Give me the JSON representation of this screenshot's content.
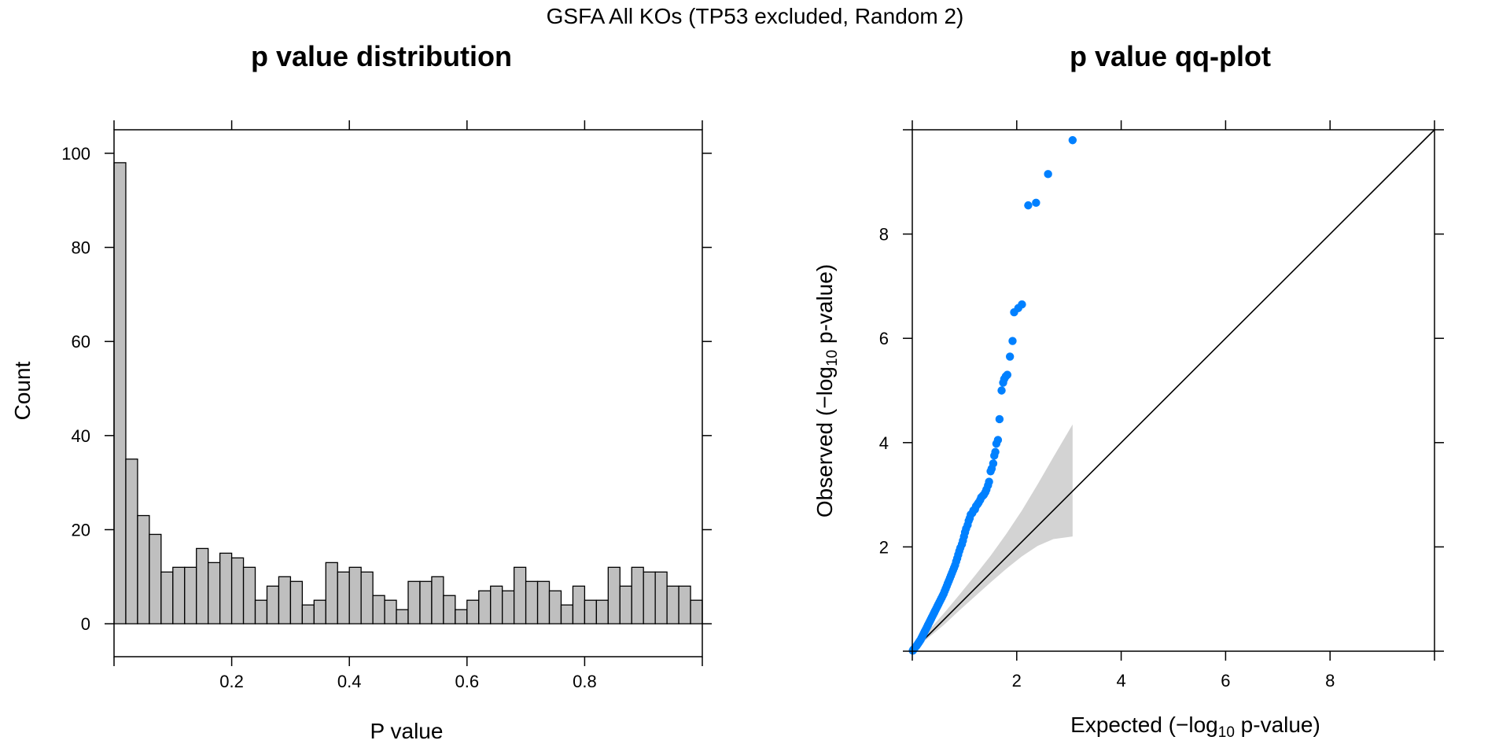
{
  "figure": {
    "suptitle": "GSFA All KOs (TP53 excluded, Random 2)"
  },
  "colors": {
    "bar_fill": "#bfbfbf",
    "bar_stroke": "#000000",
    "point": "#0080ff",
    "band": "#d3d3d3",
    "line": "#000000"
  },
  "chart_data": [
    {
      "type": "bar",
      "title": "p value distribution",
      "xlabel": "P value",
      "ylabel": "Count",
      "xlim": [
        0,
        1
      ],
      "ylim": [
        -7,
        105
      ],
      "bin_width": 0.02,
      "x_ticks": [
        0.2,
        0.4,
        0.6,
        0.8
      ],
      "x_tick_labels": [
        "0.2",
        "0.4",
        "0.6",
        "0.8"
      ],
      "y_ticks": [
        0,
        20,
        40,
        60,
        80,
        100
      ],
      "y_tick_labels": [
        "0",
        "20",
        "40",
        "60",
        "80",
        "100"
      ],
      "categories": [
        "0.00-0.02",
        "0.02-0.04",
        "0.04-0.06",
        "0.06-0.08",
        "0.08-0.10",
        "0.10-0.12",
        "0.12-0.14",
        "0.14-0.16",
        "0.16-0.18",
        "0.18-0.20",
        "0.20-0.22",
        "0.22-0.24",
        "0.24-0.26",
        "0.26-0.28",
        "0.28-0.30",
        "0.30-0.32",
        "0.32-0.34",
        "0.34-0.36",
        "0.36-0.38",
        "0.38-0.40",
        "0.40-0.42",
        "0.42-0.44",
        "0.44-0.46",
        "0.46-0.48",
        "0.48-0.50",
        "0.50-0.52",
        "0.52-0.54",
        "0.54-0.56",
        "0.56-0.58",
        "0.58-0.60",
        "0.60-0.62",
        "0.62-0.64",
        "0.64-0.66",
        "0.66-0.68",
        "0.68-0.70",
        "0.70-0.72",
        "0.72-0.74",
        "0.74-0.76",
        "0.76-0.78",
        "0.78-0.80",
        "0.80-0.82",
        "0.82-0.84",
        "0.84-0.86",
        "0.86-0.88",
        "0.88-0.90",
        "0.90-0.92",
        "0.92-0.94",
        "0.94-0.96",
        "0.96-0.98",
        "0.98-1.00"
      ],
      "values": [
        98,
        35,
        23,
        19,
        11,
        12,
        12,
        16,
        13,
        15,
        14,
        12,
        5,
        8,
        10,
        9,
        4,
        5,
        13,
        11,
        12,
        11,
        6,
        5,
        3,
        9,
        9,
        10,
        6,
        3,
        5,
        7,
        8,
        7,
        12,
        9,
        9,
        7,
        4,
        8,
        5,
        5,
        12,
        8,
        12,
        11,
        11,
        8,
        8,
        5
      ]
    },
    {
      "type": "scatter",
      "title": "p value qq-plot",
      "xlabel": "Expected (−log10 p-value)",
      "ylabel": "Observed (−log10 p-value)",
      "xlabel_parts": [
        "Expected (",
        "−",
        "log",
        "10",
        " p-value)"
      ],
      "ylabel_parts": [
        "Observed (",
        "−",
        "log",
        "10",
        " p-value)"
      ],
      "xlim": [
        0,
        10
      ],
      "ylim": [
        0,
        10
      ],
      "x_ticks": [
        2,
        4,
        6,
        8
      ],
      "x_tick_labels": [
        "2",
        "4",
        "6",
        "8"
      ],
      "y_ticks": [
        2,
        4,
        6,
        8
      ],
      "y_tick_labels": [
        "2",
        "4",
        "6",
        "8"
      ],
      "reference_line": {
        "from": [
          0,
          0
        ],
        "to": [
          10,
          10
        ]
      },
      "confidence_band": {
        "x": [
          0.0,
          0.3,
          0.6,
          0.9,
          1.2,
          1.5,
          1.8,
          2.1,
          2.4,
          2.7,
          3.07
        ],
        "lower": [
          0.0,
          0.25,
          0.5,
          0.78,
          1.05,
          1.32,
          1.58,
          1.82,
          2.02,
          2.15,
          2.2
        ],
        "upper": [
          0.0,
          0.38,
          0.72,
          1.08,
          1.45,
          1.83,
          2.25,
          2.7,
          3.2,
          3.72,
          4.35
        ]
      },
      "points": [
        [
          3.07,
          9.8
        ],
        [
          2.6,
          9.15
        ],
        [
          2.37,
          8.6
        ],
        [
          2.22,
          8.55
        ],
        [
          2.1,
          6.65
        ],
        [
          2.03,
          6.58
        ],
        [
          1.95,
          6.5
        ],
        [
          1.92,
          5.95
        ],
        [
          1.87,
          5.65
        ],
        [
          1.82,
          5.3
        ],
        [
          1.79,
          5.27
        ],
        [
          1.76,
          5.22
        ],
        [
          1.74,
          5.15
        ],
        [
          1.71,
          5.0
        ],
        [
          1.67,
          4.45
        ],
        [
          1.64,
          4.05
        ],
        [
          1.61,
          3.98
        ],
        [
          1.59,
          3.82
        ],
        [
          1.57,
          3.75
        ],
        [
          1.55,
          3.6
        ],
        [
          1.52,
          3.5
        ],
        [
          1.5,
          3.45
        ],
        [
          1.47,
          3.25
        ],
        [
          1.45,
          3.18
        ],
        [
          1.42,
          3.1
        ],
        [
          1.4,
          3.05
        ],
        [
          1.37,
          3.0
        ],
        [
          1.35,
          2.98
        ],
        [
          1.32,
          2.95
        ],
        [
          1.3,
          2.9
        ],
        [
          1.27,
          2.85
        ],
        [
          1.25,
          2.82
        ],
        [
          1.22,
          2.78
        ],
        [
          1.2,
          2.72
        ],
        [
          1.17,
          2.7
        ],
        [
          1.15,
          2.65
        ],
        [
          1.12,
          2.62
        ],
        [
          1.1,
          2.55
        ],
        [
          1.08,
          2.5
        ],
        [
          1.06,
          2.42
        ],
        [
          1.03,
          2.35
        ],
        [
          1.01,
          2.28
        ],
        [
          0.99,
          2.2
        ],
        [
          0.97,
          2.12
        ],
        [
          0.95,
          2.05
        ],
        [
          0.92,
          1.98
        ],
        [
          0.9,
          1.92
        ],
        [
          0.88,
          1.85
        ],
        [
          0.86,
          1.78
        ],
        [
          0.84,
          1.72
        ],
        [
          0.82,
          1.65
        ],
        [
          0.8,
          1.6
        ],
        [
          0.78,
          1.55
        ],
        [
          0.76,
          1.5
        ],
        [
          0.74,
          1.45
        ],
        [
          0.72,
          1.4
        ],
        [
          0.7,
          1.35
        ],
        [
          0.68,
          1.3
        ],
        [
          0.66,
          1.25
        ],
        [
          0.64,
          1.2
        ],
        [
          0.62,
          1.15
        ],
        [
          0.6,
          1.1
        ],
        [
          0.58,
          1.06
        ],
        [
          0.56,
          1.02
        ],
        [
          0.54,
          0.98
        ],
        [
          0.52,
          0.94
        ],
        [
          0.5,
          0.9
        ],
        [
          0.48,
          0.86
        ],
        [
          0.46,
          0.82
        ],
        [
          0.44,
          0.78
        ],
        [
          0.42,
          0.74
        ],
        [
          0.4,
          0.7
        ],
        [
          0.38,
          0.66
        ],
        [
          0.36,
          0.62
        ],
        [
          0.34,
          0.58
        ],
        [
          0.32,
          0.54
        ],
        [
          0.3,
          0.5
        ],
        [
          0.28,
          0.46
        ],
        [
          0.26,
          0.42
        ],
        [
          0.24,
          0.38
        ],
        [
          0.22,
          0.34
        ],
        [
          0.2,
          0.3
        ],
        [
          0.18,
          0.26
        ],
        [
          0.16,
          0.22
        ],
        [
          0.14,
          0.19
        ],
        [
          0.12,
          0.16
        ],
        [
          0.1,
          0.13
        ],
        [
          0.08,
          0.1
        ],
        [
          0.06,
          0.08
        ],
        [
          0.04,
          0.05
        ],
        [
          0.02,
          0.03
        ],
        [
          0.01,
          0.01
        ]
      ]
    }
  ]
}
